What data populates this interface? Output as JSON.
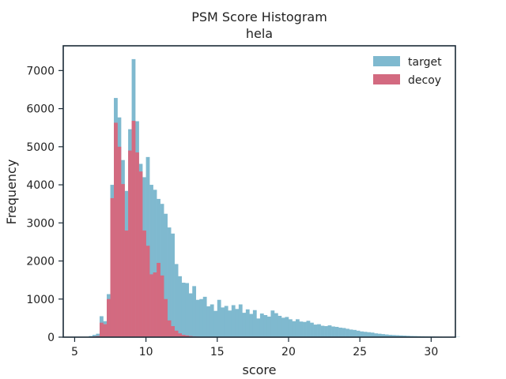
{
  "chart_data": {
    "type": "bar",
    "subtype": "histogram",
    "title": "PSM Score Histogram",
    "subtitle": "hela",
    "xlabel": "score",
    "ylabel": "Frequency",
    "xlim": [
      4.2,
      31.7
    ],
    "ylim": [
      0,
      7650
    ],
    "xticks": [
      5,
      10,
      15,
      20,
      25,
      30
    ],
    "yticks": [
      0,
      1000,
      2000,
      3000,
      4000,
      5000,
      6000,
      7000
    ],
    "bin_start": 5.0,
    "bin_width": 0.25,
    "legend_position": "top-right",
    "series": [
      {
        "name": "target",
        "color": "#7fb9cf",
        "values": [
          0,
          0,
          0,
          0,
          30,
          60,
          90,
          550,
          420,
          1130,
          4000,
          6280,
          5770,
          4650,
          3840,
          5460,
          7300,
          5670,
          4550,
          4200,
          4730,
          4000,
          3870,
          3630,
          3500,
          3240,
          2880,
          2720,
          1920,
          1600,
          1430,
          1420,
          1150,
          1340,
          980,
          1000,
          1060,
          810,
          860,
          690,
          980,
          780,
          820,
          700,
          840,
          740,
          860,
          640,
          730,
          610,
          710,
          490,
          620,
          580,
          540,
          700,
          630,
          560,
          510,
          530,
          470,
          420,
          470,
          410,
          400,
          430,
          380,
          330,
          340,
          300,
          290,
          310,
          280,
          270,
          250,
          240,
          220,
          200,
          190,
          170,
          150,
          140,
          130,
          120,
          100,
          90,
          80,
          70,
          60,
          55,
          50,
          45,
          40,
          35,
          30,
          28,
          25,
          22,
          20,
          18,
          16,
          14,
          12,
          10,
          9,
          8,
          7,
          6
        ]
      },
      {
        "name": "decoy",
        "color": "#d36a80",
        "values": [
          0,
          0,
          0,
          0,
          10,
          20,
          30,
          380,
          340,
          1000,
          3650,
          5630,
          5000,
          4020,
          2800,
          4900,
          5680,
          4850,
          4350,
          2800,
          2400,
          1650,
          1700,
          1950,
          1620,
          1000,
          440,
          290,
          170,
          100,
          60,
          45,
          30,
          20,
          15,
          10,
          8,
          6,
          5,
          4,
          3,
          2,
          2,
          1,
          1,
          1,
          0,
          0,
          0,
          0,
          0,
          0,
          0,
          0,
          0,
          0,
          0,
          0,
          0,
          0,
          0,
          0,
          0,
          0,
          0,
          0,
          0,
          0,
          0,
          0,
          0,
          0,
          0,
          0,
          0,
          0,
          0,
          0,
          0,
          0,
          0,
          0,
          0,
          0,
          0,
          0,
          0,
          0,
          0,
          0,
          0,
          0,
          0,
          0,
          0,
          0,
          0,
          0,
          0,
          0,
          0,
          0,
          0,
          0,
          0,
          0,
          0,
          0
        ]
      }
    ]
  }
}
